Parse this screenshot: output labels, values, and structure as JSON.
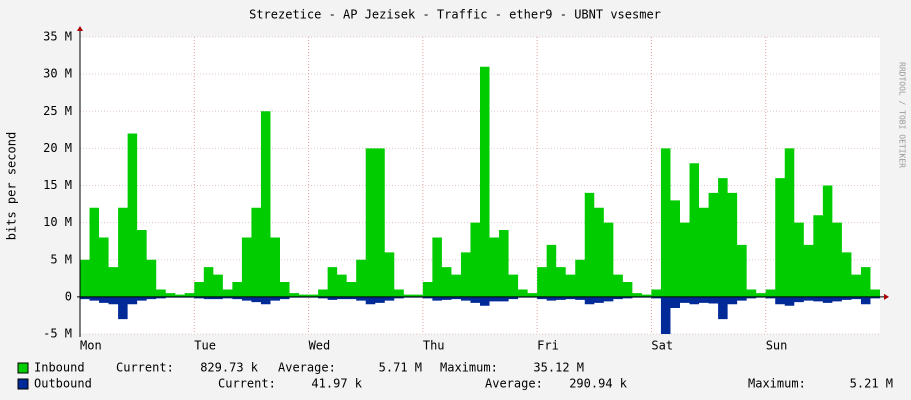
{
  "chart_data": {
    "type": "area",
    "title": "Strezetice - AP Jezisek - Traffic - ether9 - UBNT vsesmer",
    "y_label": "bits per second",
    "watermark": "RRDTOOL / TOBI OETIKER",
    "categories": [
      "Mon",
      null,
      null,
      null,
      null,
      null,
      null,
      null,
      null,
      null,
      null,
      null,
      "Tue",
      null,
      null,
      null,
      null,
      null,
      null,
      null,
      null,
      null,
      null,
      null,
      "Wed",
      null,
      null,
      null,
      null,
      null,
      null,
      null,
      null,
      null,
      null,
      null,
      "Thu",
      null,
      null,
      null,
      null,
      null,
      null,
      null,
      null,
      null,
      null,
      null,
      "Fri",
      null,
      null,
      null,
      null,
      null,
      null,
      null,
      null,
      null,
      null,
      null,
      "Sat",
      null,
      null,
      null,
      null,
      null,
      null,
      null,
      null,
      null,
      null,
      null,
      "Sun",
      null,
      null,
      null,
      null,
      null,
      null,
      null,
      null,
      null,
      null,
      null
    ],
    "ylim": [
      -5,
      35
    ],
    "yticks": [
      {
        "value": -5,
        "label": "-5 M"
      },
      0,
      {
        "value": 5,
        "label": "5 M"
      },
      {
        "value": 10,
        "label": "10 M"
      },
      {
        "value": 15,
        "label": "15 M"
      },
      {
        "value": 20,
        "label": "20 M"
      },
      {
        "value": 25,
        "label": "25 M"
      },
      {
        "value": 30,
        "label": "30 M"
      },
      {
        "value": 35,
        "label": "35 M"
      }
    ],
    "grid": true,
    "series": [
      {
        "name": "Inbound",
        "color": "#00cc00",
        "values": [
          5,
          12,
          8,
          4,
          12,
          22,
          9,
          5,
          1,
          0.5,
          0.3,
          0.5,
          2,
          4,
          3,
          1,
          2,
          8,
          12,
          25,
          8,
          2,
          0.5,
          0.3,
          0.3,
          1,
          4,
          3,
          2,
          5,
          20,
          20,
          6,
          1,
          0.3,
          0.3,
          2,
          8,
          4,
          3,
          6,
          10,
          31,
          8,
          9,
          3,
          1,
          0.5,
          4,
          7,
          4,
          3,
          5,
          14,
          12,
          10,
          3,
          2,
          0.5,
          0.3,
          1,
          20,
          13,
          10,
          18,
          12,
          14,
          16,
          14,
          7,
          1,
          0.5,
          1,
          16,
          20,
          10,
          7,
          11,
          15,
          10,
          6,
          3,
          4,
          1
        ],
        "stats": [
          {
            "label": "Current:",
            "value": "829.73 k"
          },
          {
            "label": "Average:",
            "value": "5.71 M"
          },
          {
            "label": "Maximum:",
            "value": "35.12 M"
          }
        ]
      },
      {
        "name": "Outbound",
        "color": "#002a97",
        "values": [
          -0.3,
          -0.5,
          -0.8,
          -1,
          -3,
          -1,
          -0.5,
          -0.3,
          -0.2,
          -0.1,
          -0.1,
          -0.1,
          -0.2,
          -0.3,
          -0.3,
          -0.2,
          -0.3,
          -0.5,
          -0.7,
          -1,
          -0.5,
          -0.3,
          -0.1,
          -0.1,
          -0.1,
          -0.2,
          -0.4,
          -0.3,
          -0.3,
          -0.5,
          -1,
          -0.8,
          -0.5,
          -0.2,
          -0.1,
          -0.1,
          -0.2,
          -0.5,
          -0.4,
          -0.3,
          -0.5,
          -0.8,
          -1.2,
          -0.6,
          -0.6,
          -0.3,
          -0.1,
          -0.1,
          -0.3,
          -0.5,
          -0.4,
          -0.3,
          -0.4,
          -1,
          -0.8,
          -0.6,
          -0.3,
          -0.2,
          -0.1,
          -0.1,
          -0.2,
          -5,
          -1.5,
          -0.8,
          -1,
          -0.8,
          -0.9,
          -3,
          -1,
          -0.5,
          -0.2,
          -0.1,
          -0.2,
          -1,
          -1.2,
          -0.7,
          -0.5,
          -0.6,
          -0.8,
          -0.6,
          -0.4,
          -0.3,
          -1,
          -0.2
        ],
        "stats": [
          {
            "label": "Current:",
            "value": "41.97 k"
          },
          {
            "label": "Average:",
            "value": "290.94 k"
          },
          {
            "label": "Maximum:",
            "value": "5.21 M"
          }
        ]
      }
    ]
  }
}
